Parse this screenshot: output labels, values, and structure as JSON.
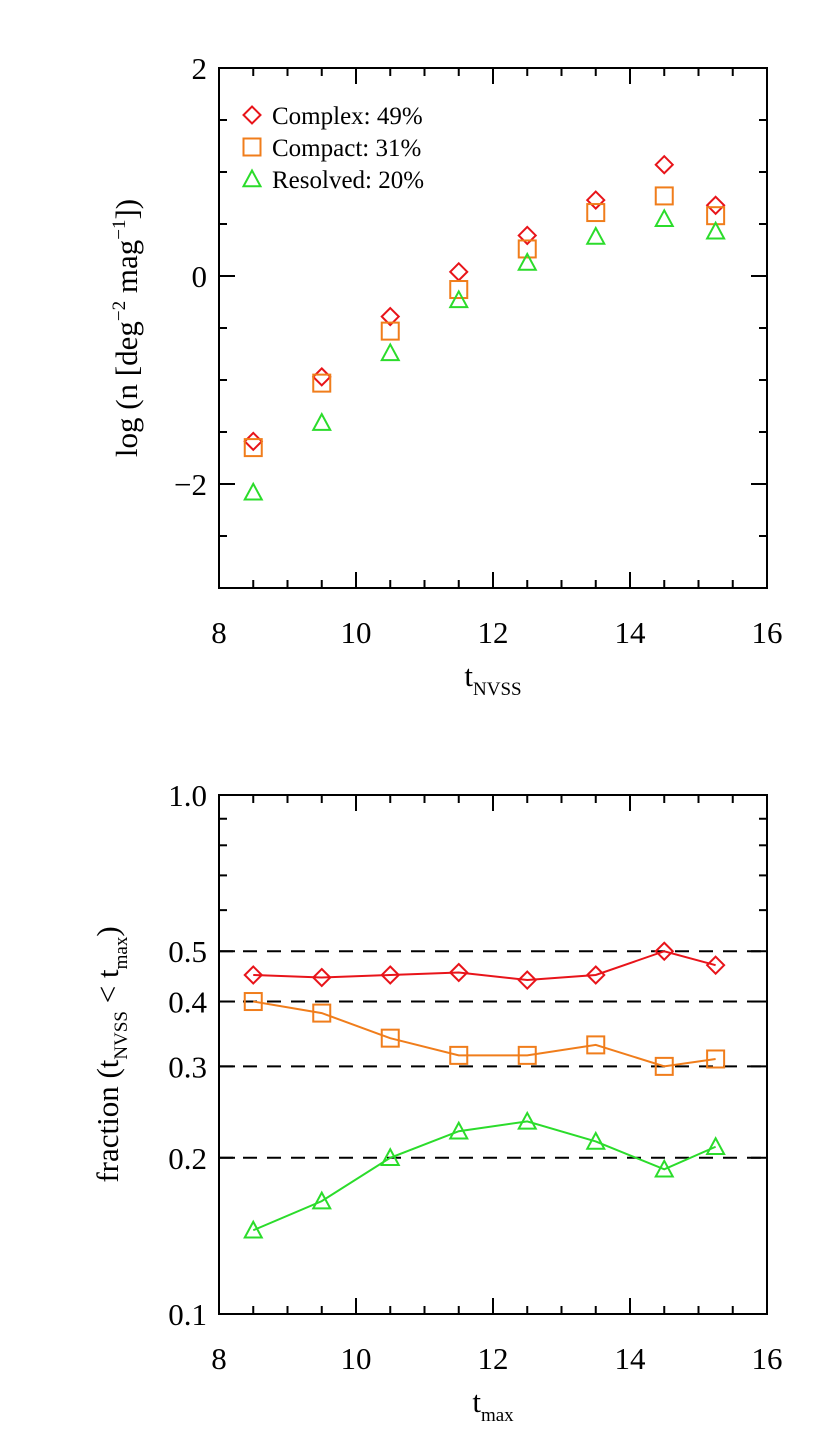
{
  "colors": {
    "complex": "#e8141a",
    "compact": "#f07d1b",
    "resolved": "#2bdc2b",
    "axis": "#000000"
  },
  "chart_data": [
    {
      "type": "scatter",
      "xlabel": {
        "main": "t",
        "sub": "NVSS"
      },
      "ylabel": {
        "prefix": "log (n [deg",
        "sup1": "−2",
        "mid": " mag",
        "sup2": "−1",
        "suffix": "])"
      },
      "xlim": [
        8,
        16
      ],
      "ylim": [
        -3,
        2
      ],
      "x_ticks": [
        8,
        10,
        12,
        14,
        16
      ],
      "y_ticks": [
        -2,
        0,
        2
      ],
      "y_tick_labels": [
        "−2",
        "0",
        "2"
      ],
      "legend": {
        "placement": "top-left",
        "entries": [
          "Complex: 49%",
          "Compact: 31%",
          "Resolved: 20%"
        ]
      },
      "x": [
        8.5,
        9.5,
        10.5,
        11.5,
        12.5,
        13.5,
        14.5,
        15.25
      ],
      "series": [
        {
          "key": "complex",
          "marker": "diamond",
          "values": [
            -1.59,
            -0.97,
            -0.39,
            0.04,
            0.39,
            0.73,
            1.07,
            0.68
          ]
        },
        {
          "key": "compact",
          "marker": "square",
          "values": [
            -1.65,
            -1.03,
            -0.53,
            -0.13,
            0.26,
            0.61,
            0.77,
            0.58
          ]
        },
        {
          "key": "resolved",
          "marker": "triangle",
          "values": [
            -2.08,
            -1.41,
            -0.74,
            -0.23,
            0.13,
            0.38,
            0.55,
            0.43
          ]
        }
      ]
    },
    {
      "type": "line",
      "xlabel": {
        "main": "t",
        "sub": "max"
      },
      "ylabel": {
        "prefix": "fraction  (t",
        "sub1": "NVSS",
        "mid": " < t",
        "sub2": "max",
        "suffix": ")"
      },
      "xlim": [
        8,
        16
      ],
      "ylim": [
        0.1,
        1.0
      ],
      "yscale": "log",
      "x_ticks": [
        8,
        10,
        12,
        14,
        16
      ],
      "y_ticks": [
        0.1,
        0.2,
        0.3,
        0.4,
        0.5,
        1.0
      ],
      "y_tick_labels": [
        "0.1",
        "0.2",
        "0.3",
        "0.4",
        "0.5",
        "1.0"
      ],
      "reference_lines": [
        0.2,
        0.3,
        0.4,
        0.5
      ],
      "x": [
        8.5,
        9.5,
        10.5,
        11.5,
        12.5,
        13.5,
        14.5,
        15.25
      ],
      "series": [
        {
          "key": "complex",
          "marker": "diamond",
          "values": [
            0.45,
            0.445,
            0.45,
            0.455,
            0.44,
            0.45,
            0.5,
            0.47
          ]
        },
        {
          "key": "compact",
          "marker": "square",
          "values": [
            0.4,
            0.38,
            0.34,
            0.315,
            0.315,
            0.33,
            0.3,
            0.31
          ]
        },
        {
          "key": "resolved",
          "marker": "triangle",
          "values": [
            0.145,
            0.165,
            0.2,
            0.225,
            0.235,
            0.215,
            0.19,
            0.21
          ]
        }
      ]
    }
  ]
}
